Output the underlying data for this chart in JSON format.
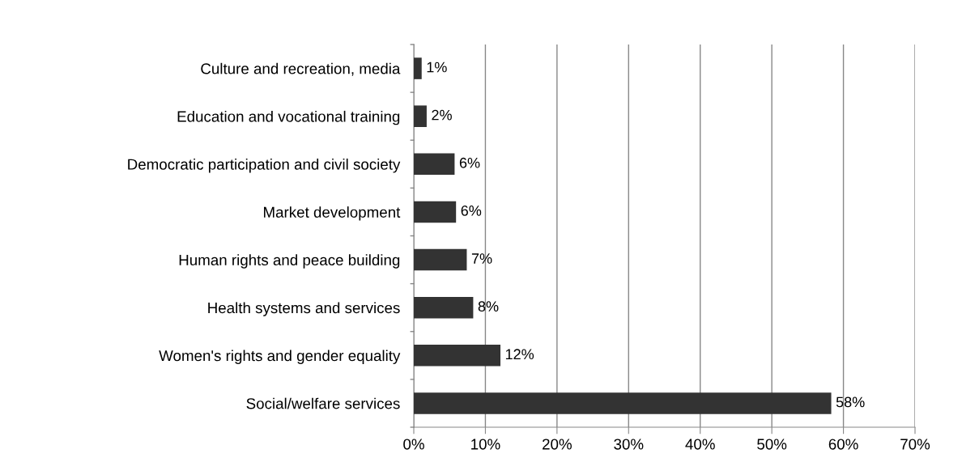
{
  "chart_data": {
    "type": "bar",
    "orientation": "horizontal",
    "categories": [
      "Culture and recreation, media",
      "Education and vocational training",
      "Democratic participation and civil society",
      "Market development",
      "Human rights and peace building",
      "Health systems and services",
      "Women's rights and gender equality",
      "Social/welfare services"
    ],
    "values": [
      1.1,
      1.8,
      5.7,
      5.9,
      7.4,
      8.3,
      12.1,
      58.3
    ],
    "value_labels": [
      "1%",
      "2%",
      "6%",
      "6%",
      "7%",
      "8%",
      "12%",
      "58%"
    ],
    "color": "#333333",
    "xlim": [
      0,
      70
    ],
    "xticks": [
      {
        "value": 0,
        "label": "0%"
      },
      {
        "value": 10,
        "label": "10%"
      },
      {
        "value": 20,
        "label": "20%"
      },
      {
        "value": 30,
        "label": "30%"
      },
      {
        "value": 40,
        "label": "40%"
      },
      {
        "value": 50,
        "label": "50%"
      },
      {
        "value": 60,
        "label": "60%"
      },
      {
        "value": 70,
        "label": "70%"
      }
    ],
    "grid": "x"
  }
}
